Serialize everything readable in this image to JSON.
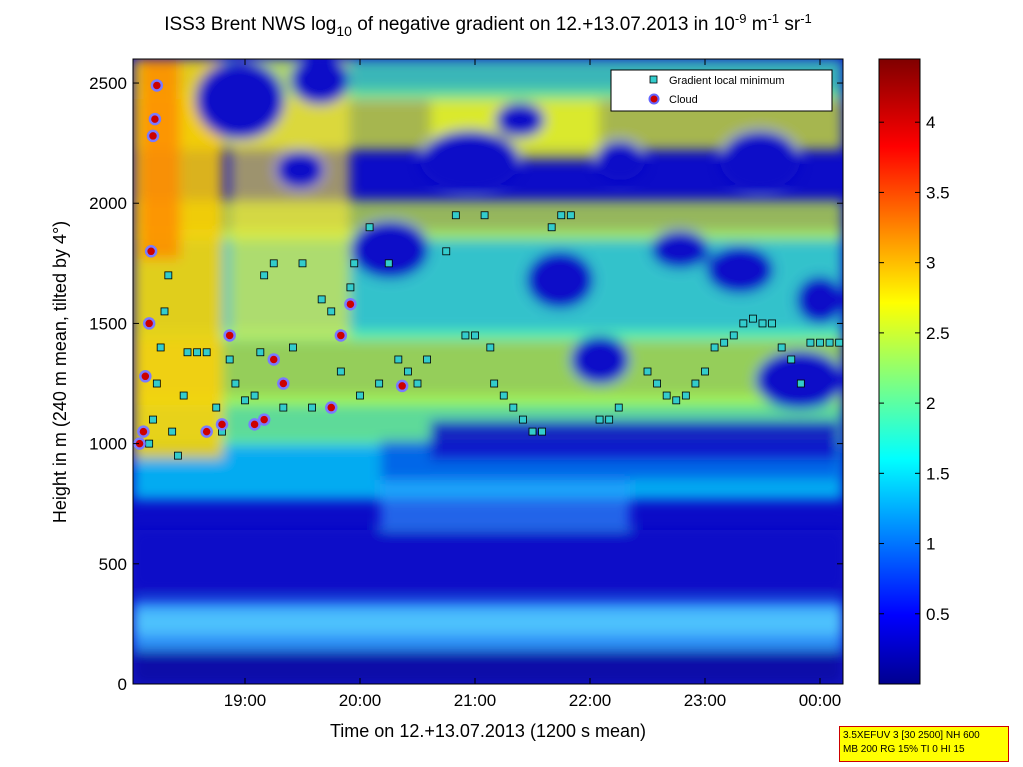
{
  "chart_data": {
    "type": "heatmap",
    "title": {
      "prefix": "ISS3 Brent NWS log",
      "prefix_sub": "10",
      "middle": " of negative gradient on 12.+13.07.2013 in 10",
      "exp1": "-9",
      "unit1": " m",
      "exp2": "-1",
      "unit2": " sr",
      "exp3": "-1"
    },
    "xlabel": "Time on 12.+13.07.2013 (1200 s mean)",
    "ylabel": "Height in m (240 m mean, tilted by 4°)",
    "x_ticks": [
      "19:00",
      "20:00",
      "21:00",
      "22:00",
      "23:00",
      "00:00"
    ],
    "y_ticks": [
      0,
      500,
      1000,
      1500,
      2000,
      2500
    ],
    "ylim": [
      0,
      2600
    ],
    "colorbar": {
      "ticks": [
        0.5,
        1,
        1.5,
        2,
        2.5,
        3,
        3.5,
        4
      ],
      "range": [
        0,
        4.45
      ]
    },
    "legend": {
      "position": "top-right",
      "entries": [
        {
          "label": "Gradient local minimum",
          "marker": "square",
          "color": "#33cccc"
        },
        {
          "label": "Cloud",
          "marker": "circle",
          "color": "#cc0000"
        }
      ]
    },
    "series": [
      {
        "name": "Gradient local minimum",
        "points": [
          [
            "18:10",
            1000
          ],
          [
            "18:12",
            1100
          ],
          [
            "18:14",
            1250
          ],
          [
            "18:16",
            1400
          ],
          [
            "18:18",
            1550
          ],
          [
            "18:20",
            1700
          ],
          [
            "18:22",
            1050
          ],
          [
            "18:25",
            950
          ],
          [
            "18:28",
            1200
          ],
          [
            "18:30",
            1380
          ],
          [
            "18:35",
            1380
          ],
          [
            "18:40",
            1380
          ],
          [
            "18:45",
            1150
          ],
          [
            "18:48",
            1050
          ],
          [
            "18:52",
            1350
          ],
          [
            "18:55",
            1250
          ],
          [
            "19:00",
            1180
          ],
          [
            "19:05",
            1200
          ],
          [
            "19:08",
            1380
          ],
          [
            "19:10",
            1700
          ],
          [
            "19:15",
            1750
          ],
          [
            "19:20",
            1150
          ],
          [
            "19:25",
            1400
          ],
          [
            "19:30",
            1750
          ],
          [
            "19:35",
            1150
          ],
          [
            "19:40",
            1600
          ],
          [
            "19:45",
            1550
          ],
          [
            "19:50",
            1300
          ],
          [
            "19:55",
            1650
          ],
          [
            "19:57",
            1750
          ],
          [
            "20:00",
            1200
          ],
          [
            "20:05",
            1900
          ],
          [
            "20:10",
            1250
          ],
          [
            "20:15",
            1750
          ],
          [
            "20:20",
            1350
          ],
          [
            "20:25",
            1300
          ],
          [
            "20:30",
            1250
          ],
          [
            "20:35",
            1350
          ],
          [
            "20:45",
            1800
          ],
          [
            "20:50",
            1950
          ],
          [
            "20:55",
            1450
          ],
          [
            "21:00",
            1450
          ],
          [
            "21:05",
            1950
          ],
          [
            "21:08",
            1400
          ],
          [
            "21:10",
            1250
          ],
          [
            "21:15",
            1200
          ],
          [
            "21:20",
            1150
          ],
          [
            "21:25",
            1100
          ],
          [
            "21:30",
            1050
          ],
          [
            "21:35",
            1050
          ],
          [
            "21:40",
            1900
          ],
          [
            "21:45",
            1950
          ],
          [
            "21:50",
            1950
          ],
          [
            "22:05",
            1100
          ],
          [
            "22:10",
            1100
          ],
          [
            "22:15",
            1150
          ],
          [
            "22:30",
            1300
          ],
          [
            "22:35",
            1250
          ],
          [
            "22:40",
            1200
          ],
          [
            "22:45",
            1180
          ],
          [
            "22:50",
            1200
          ],
          [
            "22:55",
            1250
          ],
          [
            "23:00",
            1300
          ],
          [
            "23:05",
            1400
          ],
          [
            "23:10",
            1420
          ],
          [
            "23:15",
            1450
          ],
          [
            "23:20",
            1500
          ],
          [
            "23:25",
            1520
          ],
          [
            "23:30",
            1500
          ],
          [
            "23:35",
            1500
          ],
          [
            "23:40",
            1400
          ],
          [
            "23:45",
            1350
          ],
          [
            "23:50",
            1250
          ],
          [
            "23:55",
            1420
          ],
          [
            "24:00",
            1420
          ],
          [
            "24:05",
            1420
          ],
          [
            "24:10",
            1420
          ]
        ]
      },
      {
        "name": "Cloud",
        "points": [
          [
            "18:05",
            1000
          ],
          [
            "18:07",
            1050
          ],
          [
            "18:10",
            1500
          ],
          [
            "18:11",
            1800
          ],
          [
            "18:12",
            2280
          ],
          [
            "18:13",
            2350
          ],
          [
            "18:14",
            2490
          ],
          [
            "18:08",
            1280
          ],
          [
            "18:40",
            1050
          ],
          [
            "18:48",
            1080
          ],
          [
            "18:52",
            1450
          ],
          [
            "19:05",
            1080
          ],
          [
            "19:10",
            1100
          ],
          [
            "19:15",
            1350
          ],
          [
            "19:20",
            1250
          ],
          [
            "19:45",
            1150
          ],
          [
            "19:50",
            1450
          ],
          [
            "19:55",
            1580
          ],
          [
            "20:22",
            1240
          ]
        ]
      }
    ]
  },
  "info_box": {
    "line1": "3.5XEFUV 3 [30 2500] NH 600",
    "line2": "MB 200 RG 15% TI 0 HI 15"
  }
}
